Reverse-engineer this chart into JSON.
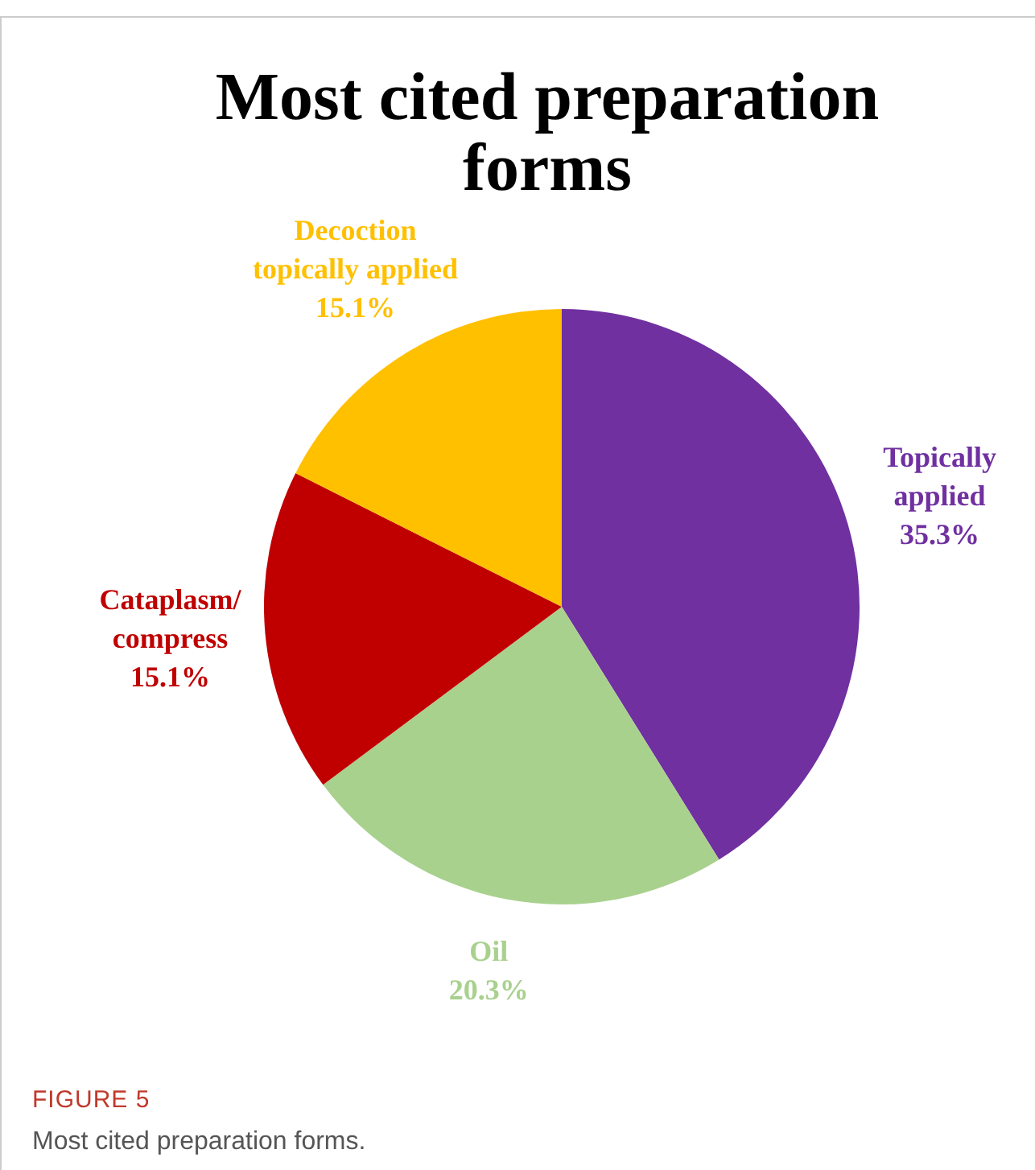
{
  "chart_data": {
    "type": "pie",
    "title": "Most cited preparation forms",
    "categories": [
      "Topically applied",
      "Oil",
      "Cataplasm/compress",
      "Decoction topically applied"
    ],
    "values": [
      35.3,
      20.3,
      15.1,
      15.1
    ],
    "colors": [
      "#7030a0",
      "#a9d18e",
      "#c00000",
      "#ffc000"
    ],
    "value_labels": [
      "35.3%",
      "20.3%",
      "15.1%",
      "15.1%"
    ],
    "annotations": [
      "FIGURE 5",
      "Most cited preparation forms."
    ]
  }
}
